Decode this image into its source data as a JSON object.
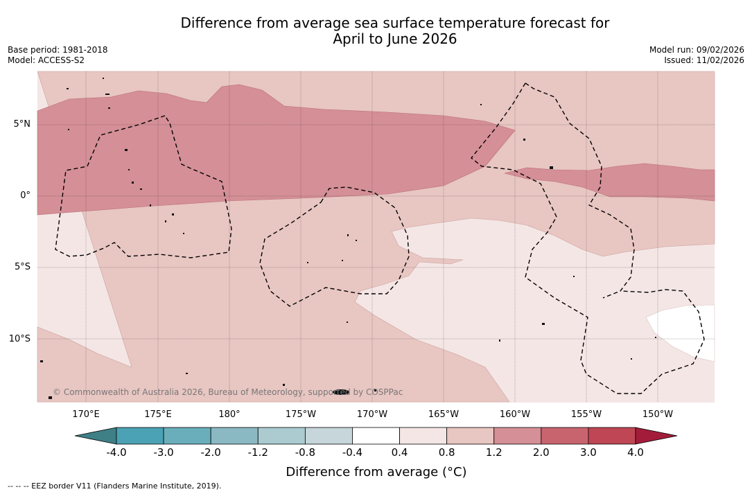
{
  "header": {
    "title_line1": "Difference from average sea surface temperature forecast for",
    "title_line2": "April to June 2026",
    "base_period": "Base period: 1981-2018",
    "model": "Model: ACCESS-S2",
    "model_run": "Model run: 09/02/2026",
    "issued": "Issued: 11/02/2026"
  },
  "map": {
    "lat_labels": [
      "5°N",
      "0°",
      "5°S",
      "10°S"
    ],
    "lon_labels": [
      "170°E",
      "175°E",
      "180°",
      "175°W",
      "170°W",
      "165°W",
      "160°W",
      "155°W",
      "150°W"
    ],
    "copyright": "© Commonwealth of Australia 2026, Bureau of Meteorology, supported by COSPPac"
  },
  "colorbar": {
    "ticks": [
      "-4.0",
      "-3.0",
      "-2.0",
      "-1.2",
      "-0.8",
      "-0.4",
      "0.4",
      "0.8",
      "1.2",
      "2.0",
      "3.0",
      "4.0"
    ],
    "colors": [
      "#3f7f86",
      "#4ba2b4",
      "#6aaebb",
      "#8ab9c3",
      "#abcbd0",
      "#c7d6db",
      "#ffffff",
      "#f4e6e5",
      "#e8c6c2",
      "#d58f96",
      "#c8646e",
      "#bf4654",
      "#a31d3a"
    ],
    "label": "Difference from average ($^\\circ$C)",
    "label_display": "Difference from average (°C)"
  },
  "footer": {
    "eez_note": "--  --  -- EEZ border V11 (Flanders Marine Institute, 2019)."
  }
}
